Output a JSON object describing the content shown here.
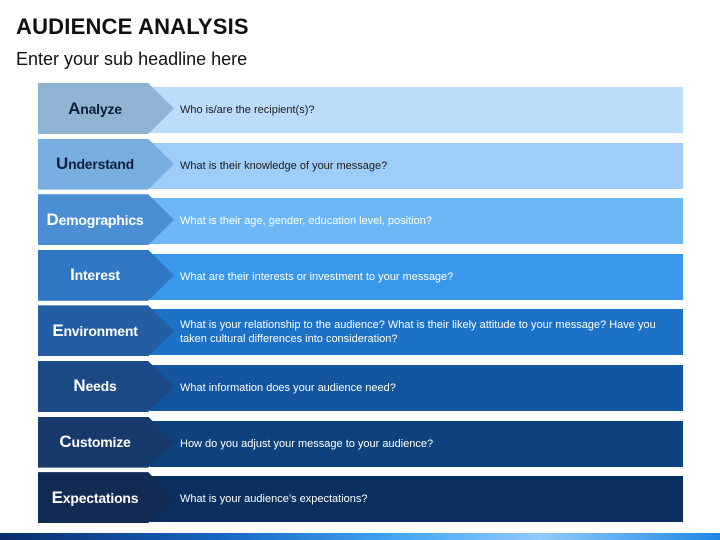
{
  "title": "AUDIENCE ANALYSIS",
  "subtitle": "Enter your sub headline here",
  "rows": [
    {
      "initial": "A",
      "rest": "nalyze",
      "desc": "Who is/are the recipient(s)?",
      "chevron_color": "#8eb3d3",
      "bar_color": "#bcdcfb",
      "dark": false
    },
    {
      "initial": "U",
      "rest": "nderstand",
      "desc": "What is their knowledge of your message?",
      "chevron_color": "#79aee0",
      "bar_color": "#9fcdfa",
      "dark": false
    },
    {
      "initial": "D",
      "rest": "emographics",
      "desc": "What is their age, gender, education level, position?",
      "chevron_color": "#4a8fd4",
      "bar_color": "#6db7f7",
      "dark": true
    },
    {
      "initial": "I",
      "rest": "nterest",
      "desc": "What are their interests or investment to your message?",
      "chevron_color": "#2f77c2",
      "bar_color": "#3a98ec",
      "dark": true
    },
    {
      "initial": "E",
      "rest": "nvironment",
      "desc": "What is your relationship to the audience? What is their likely attitude to your message? Have you taken cultural differences into consideration?",
      "chevron_color": "#235da3",
      "bar_color": "#1b72c6",
      "dark": true
    },
    {
      "initial": "N",
      "rest": "eeds",
      "desc": "What information does your audience need?",
      "chevron_color": "#1c4a86",
      "bar_color": "#13559e",
      "dark": true
    },
    {
      "initial": "C",
      "rest": "ustomize",
      "desc": "How do you adjust your message to your audience?",
      "chevron_color": "#163a6c",
      "bar_color": "#0e427d",
      "dark": true
    },
    {
      "initial": "E",
      "rest": "xpectations",
      "desc": "What is your audience’s expectations?",
      "chevron_color": "#112b52",
      "bar_color": "#0a3060",
      "dark": true
    }
  ]
}
